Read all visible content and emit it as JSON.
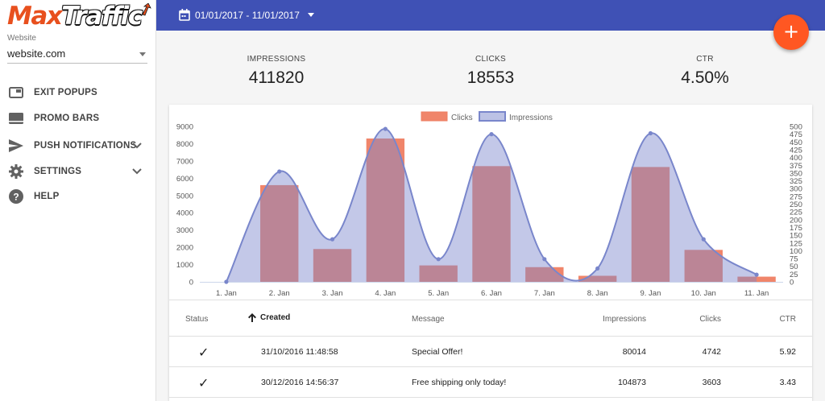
{
  "brand": {
    "part1": "Max",
    "part2": "Traffic"
  },
  "website": {
    "label": "Website",
    "value": "website.com"
  },
  "nav": [
    {
      "label": "EXIT POPUPS",
      "icon": "popup-icon"
    },
    {
      "label": "PROMO BARS",
      "icon": "bar-icon"
    },
    {
      "label": "PUSH NOTIFICATIONS",
      "icon": "send-icon",
      "expandable": true
    },
    {
      "label": "SETTINGS",
      "icon": "gear-icon",
      "expandable": true
    },
    {
      "label": "HELP",
      "icon": "help-icon"
    }
  ],
  "topbar": {
    "date_range": "01/01/2017 - 11/01/2017",
    "accent": "#3f51b5"
  },
  "fab": {
    "label": "+",
    "color": "#ff5722"
  },
  "stats": [
    {
      "label": "IMPRESSIONS",
      "value": "411820"
    },
    {
      "label": "CLICKS",
      "value": "18553"
    },
    {
      "label": "CTR",
      "value": "4.50%"
    }
  ],
  "chart_data": {
    "type": "bar",
    "categories": [
      "1. Jan",
      "2. Jan",
      "3. Jan",
      "4. Jan",
      "5. Jan",
      "6. Jan",
      "7. Jan",
      "8. Jan",
      "9. Jan",
      "10. Jan",
      "11. Jan"
    ],
    "series": [
      {
        "name": "Clicks",
        "type": "bar",
        "axis": "left",
        "color": "#f0856a",
        "values": [
          0,
          5600,
          1900,
          8300,
          950,
          6700,
          850,
          350,
          6650,
          1850,
          300
        ]
      },
      {
        "name": "Impressions",
        "type": "area",
        "axis": "right",
        "color": "#7986cb",
        "values": [
          0,
          355,
          137,
          492,
          73,
          475,
          73,
          43,
          478,
          137,
          23
        ]
      }
    ],
    "ylim_left": [
      0,
      9000
    ],
    "yticks_left": [
      0,
      1000,
      2000,
      3000,
      4000,
      5000,
      6000,
      7000,
      8000,
      9000
    ],
    "ylim_right": [
      0,
      500
    ],
    "yticks_right": [
      0,
      25,
      50,
      75,
      100,
      125,
      150,
      175,
      200,
      225,
      250,
      275,
      300,
      325,
      350,
      375,
      400,
      425,
      450,
      475,
      500
    ],
    "legend": "top-center",
    "grid": false
  },
  "table": {
    "columns": [
      "Status",
      "Created",
      "Message",
      "Impressions",
      "Clicks",
      "CTR"
    ],
    "sort_column": "Created",
    "rows": [
      {
        "status": "✓",
        "created": "31/10/2016 11:48:58",
        "message": "Special Offer!",
        "impressions": "80014",
        "clicks": "4742",
        "ctr": "5.92"
      },
      {
        "status": "✓",
        "created": "30/12/2016 14:56:37",
        "message": "Free shipping only today!",
        "impressions": "104873",
        "clicks": "3603",
        "ctr": "3.43"
      }
    ]
  }
}
